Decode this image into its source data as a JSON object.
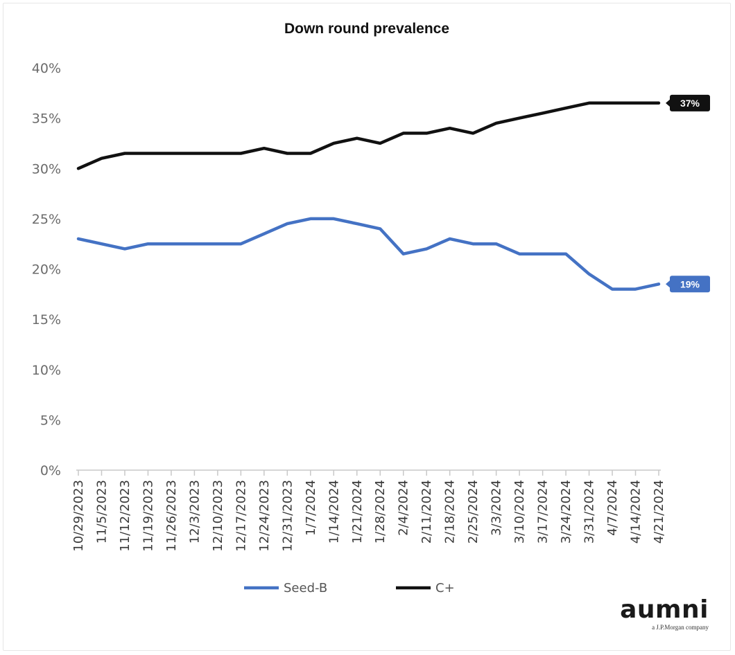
{
  "chart_data": {
    "type": "line",
    "title": "Down round prevalence",
    "xlabel": "",
    "ylabel": "",
    "categories": [
      "10/29/2023",
      "11/5/2023",
      "11/12/2023",
      "11/19/2023",
      "11/26/2023",
      "12/3/2023",
      "12/10/2023",
      "12/17/2023",
      "12/24/2023",
      "12/31/2023",
      "1/7/2024",
      "1/14/2024",
      "1/21/2024",
      "1/28/2024",
      "2/4/2024",
      "2/11/2024",
      "2/18/2024",
      "2/25/2024",
      "3/3/2024",
      "3/10/2024",
      "3/17/2024",
      "3/24/2024",
      "3/31/2024",
      "4/7/2024",
      "4/14/2024",
      "4/21/2024"
    ],
    "y_ticks": [
      "0%",
      "5%",
      "10%",
      "15%",
      "20%",
      "25%",
      "30%",
      "35%",
      "40%"
    ],
    "ylim": [
      0,
      40
    ],
    "grid": false,
    "legend_position": "bottom",
    "series": [
      {
        "name": "Seed-B",
        "color": "#4472c4",
        "values": [
          23,
          22.5,
          22,
          22.5,
          22.5,
          22.5,
          22.5,
          22.5,
          23.5,
          24.5,
          25,
          25,
          24.5,
          24,
          21.5,
          22,
          23,
          22.5,
          22.5,
          21.5,
          21.5,
          21.5,
          19.5,
          18,
          18,
          18.5
        ],
        "end_label": "19%"
      },
      {
        "name": "C+",
        "color": "#111111",
        "values": [
          30,
          31,
          31.5,
          31.5,
          31.5,
          31.5,
          31.5,
          31.5,
          32,
          31.5,
          31.5,
          32.5,
          33,
          32.5,
          33.5,
          33.5,
          34,
          33.5,
          34.5,
          35,
          35.5,
          36,
          36.5,
          36.5,
          36.5,
          36.5
        ],
        "end_label": "37%"
      }
    ]
  },
  "logo": {
    "word": "aumni",
    "tagline": "a J.P.Morgan company"
  }
}
